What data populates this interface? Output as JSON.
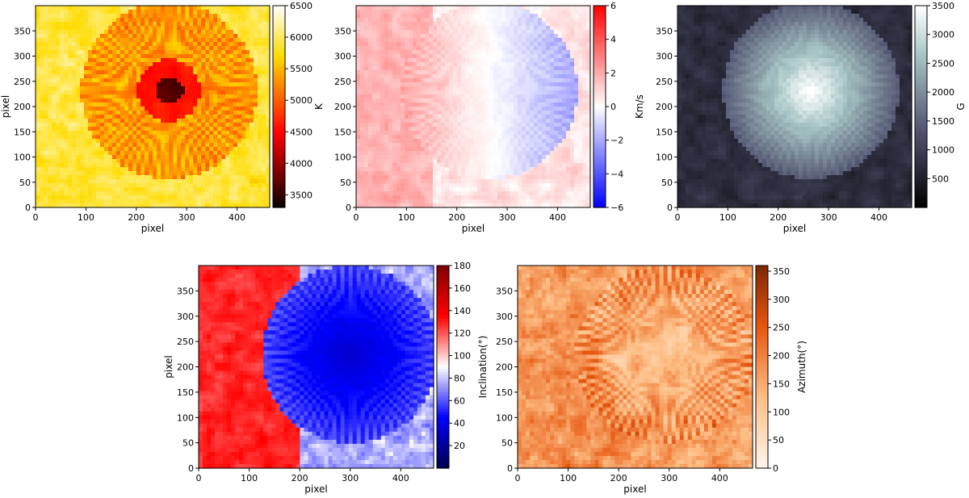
{
  "figure": {
    "panels_count": 5
  },
  "chart_data": [
    {
      "type": "heatmap",
      "id": "temperature",
      "xlabel": "pixel",
      "ylabel": "pixel",
      "xlim": [
        0,
        465
      ],
      "ylim": [
        0,
        400
      ],
      "xticks": [
        0,
        100,
        200,
        300,
        400
      ],
      "yticks": [
        0,
        50,
        100,
        150,
        200,
        250,
        300,
        350
      ],
      "colorbar": {
        "label": "K",
        "min": 3300,
        "max": 6500,
        "ticks": [
          3500,
          4000,
          4500,
          5000,
          5500,
          6000,
          6500
        ],
        "colormap": "hot"
      },
      "features": {
        "umbra_center": [
          265,
          232
        ],
        "umbra_radius": 60,
        "penumbra_radius": 175
      }
    },
    {
      "type": "heatmap",
      "id": "velocity",
      "xlabel": "pixel",
      "ylabel": "",
      "xlim": [
        0,
        465
      ],
      "ylim": [
        0,
        400
      ],
      "xticks": [
        0,
        100,
        200,
        300,
        400
      ],
      "yticks": [
        0,
        50,
        100,
        150,
        200,
        250,
        300,
        350
      ],
      "colorbar": {
        "label": "Km/s",
        "min": -6,
        "max": 6,
        "ticks": [
          -6,
          -4,
          -2,
          0,
          2,
          4,
          6
        ],
        "colormap": "bwr"
      },
      "features": {
        "umbra_center": [
          265,
          232
        ],
        "redshift_side": "left",
        "blueshift_side": "right"
      }
    },
    {
      "type": "heatmap",
      "id": "field_strength",
      "xlabel": "pixel",
      "ylabel": "",
      "xlim": [
        0,
        465
      ],
      "ylim": [
        0,
        400
      ],
      "xticks": [
        0,
        100,
        200,
        300,
        400
      ],
      "yticks": [
        0,
        50,
        100,
        150,
        200,
        250,
        300,
        350
      ],
      "colorbar": {
        "label": "G",
        "min": 0,
        "max": 3500,
        "ticks": [
          500,
          1000,
          1500,
          2000,
          2500,
          3000,
          3500
        ],
        "colormap": "bone"
      },
      "features": {
        "umbra_center": [
          265,
          232
        ],
        "peak": 3400
      }
    },
    {
      "type": "heatmap",
      "id": "inclination",
      "xlabel": "pixel",
      "ylabel": "pixel",
      "xlim": [
        0,
        465
      ],
      "ylim": [
        0,
        400
      ],
      "xticks": [
        0,
        100,
        200,
        300,
        400
      ],
      "yticks": [
        0,
        50,
        100,
        150,
        200,
        250,
        300,
        350
      ],
      "colorbar": {
        "label": "Inclination(°)",
        "min": 0,
        "max": 180,
        "ticks": [
          20,
          40,
          60,
          80,
          100,
          120,
          140,
          160,
          180
        ],
        "colormap": "seismic"
      },
      "features": {
        "umbra_center": [
          300,
          225
        ],
        "positive_polarity_side": "right",
        "negative_polarity_side": "left"
      }
    },
    {
      "type": "heatmap",
      "id": "azimuth",
      "xlabel": "pixel",
      "ylabel": "",
      "xlim": [
        0,
        465
      ],
      "ylim": [
        0,
        400
      ],
      "xticks": [
        0,
        100,
        200,
        300,
        400
      ],
      "yticks": [
        0,
        50,
        100,
        150,
        200,
        250,
        300,
        350
      ],
      "colorbar": {
        "label": "Azimuth(°)",
        "min": 0,
        "max": 360,
        "ticks": [
          0,
          50,
          100,
          150,
          200,
          250,
          300,
          350
        ],
        "colormap": "oranges"
      },
      "features": {
        "umbra_center": [
          290,
          225
        ]
      }
    }
  ]
}
